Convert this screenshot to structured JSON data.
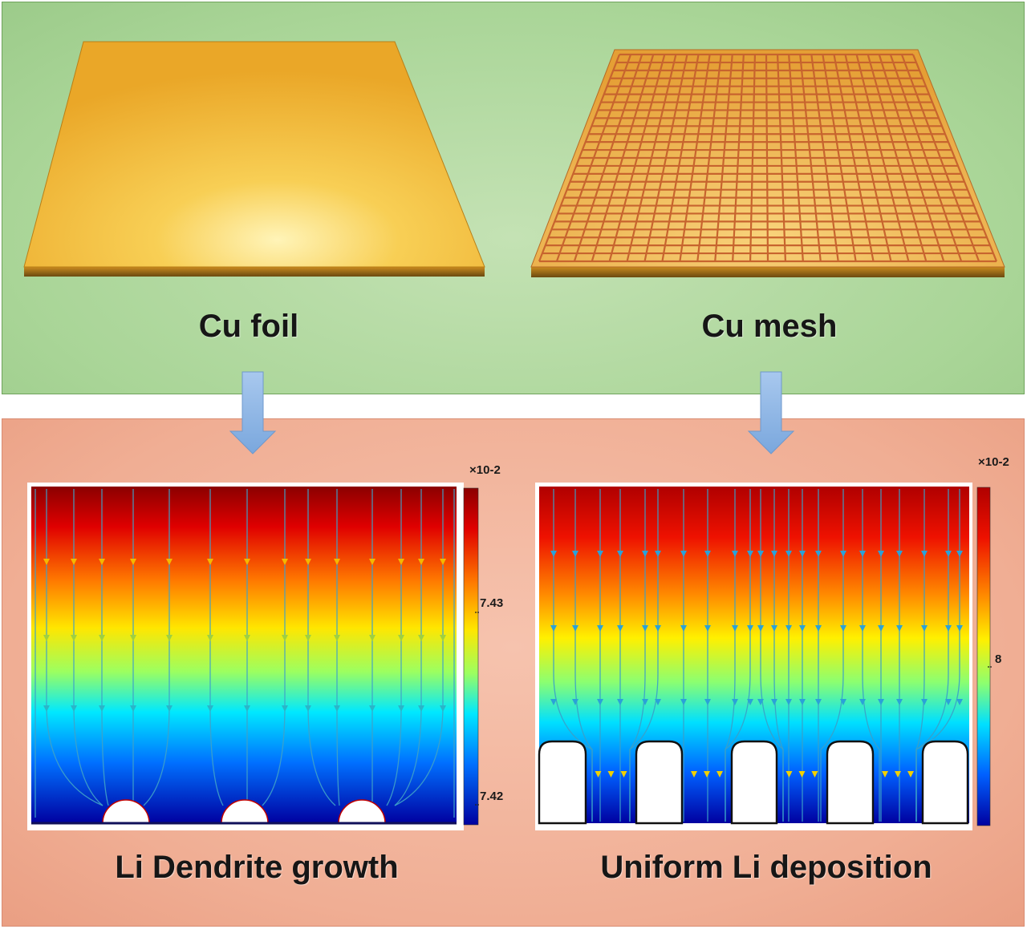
{
  "panels": {
    "foil": {
      "label": "Cu foil"
    },
    "mesh": {
      "label": "Cu mesh"
    },
    "dendrite": {
      "label": "Li Dendrite growth"
    },
    "uniform": {
      "label": "Uniform Li deposition"
    }
  },
  "colorbars": {
    "left": {
      "exponent": "×10-2",
      "ticks": [
        "7.43",
        "7.42"
      ]
    },
    "right": {
      "exponent": "×10-2",
      "ticks": [
        "8"
      ]
    }
  },
  "colors": {
    "top_background": "#a9d597",
    "bottom_background": "#f0ae94",
    "copper": "#f2b135",
    "mesh_grid": "#c7642e",
    "arrow": "#8fb8e6"
  }
}
